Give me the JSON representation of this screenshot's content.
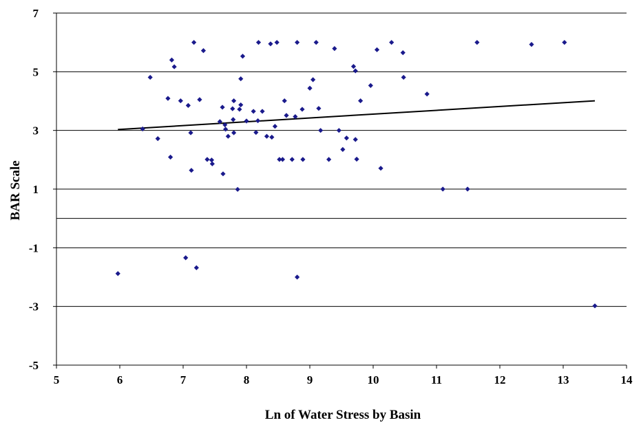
{
  "chart_data": {
    "type": "scatter",
    "title": "",
    "xlabel": "Ln of Water Stress by Basin",
    "ylabel": "BAR Scale",
    "xlim": [
      5,
      14
    ],
    "ylim": [
      -5,
      7
    ],
    "x_ticks": [
      5,
      6,
      7,
      8,
      9,
      10,
      11,
      12,
      13,
      14
    ],
    "y_ticks": [
      -5,
      -3,
      -1,
      1,
      3,
      5,
      7
    ],
    "y_gridlines": [
      -3,
      -1,
      0,
      1,
      3,
      5,
      7
    ],
    "grid": "horizontal",
    "legend": "none",
    "marker_color": "#1a1a8c",
    "trendline_color": "#000000",
    "trendline": {
      "x": [
        5.97,
        13.5
      ],
      "y": [
        3.03,
        4.01
      ]
    },
    "series": [
      {
        "points": [
          [
            5.97,
            -1.88
          ],
          [
            6.36,
            3.05
          ],
          [
            6.48,
            4.81
          ],
          [
            6.6,
            2.72
          ],
          [
            6.76,
            4.09
          ],
          [
            6.8,
            2.09
          ],
          [
            6.82,
            5.4
          ],
          [
            6.86,
            5.17
          ],
          [
            6.96,
            4.01
          ],
          [
            7.04,
            -1.34
          ],
          [
            7.08,
            3.85
          ],
          [
            7.12,
            2.92
          ],
          [
            7.13,
            1.64
          ],
          [
            7.17,
            6.0
          ],
          [
            7.21,
            -1.68
          ],
          [
            7.26,
            4.05
          ],
          [
            7.32,
            5.72
          ],
          [
            7.38,
            2.01
          ],
          [
            7.45,
            1.99
          ],
          [
            7.46,
            1.86
          ],
          [
            7.58,
            3.3
          ],
          [
            7.62,
            3.79
          ],
          [
            7.63,
            1.52
          ],
          [
            7.66,
            3.19
          ],
          [
            7.67,
            3.04
          ],
          [
            7.71,
            2.8
          ],
          [
            7.78,
            3.74
          ],
          [
            7.79,
            3.37
          ],
          [
            7.8,
            2.92
          ],
          [
            7.8,
            4.01
          ],
          [
            7.86,
            0.99
          ],
          [
            7.89,
            3.72
          ],
          [
            7.91,
            3.87
          ],
          [
            7.91,
            4.76
          ],
          [
            7.94,
            5.53
          ],
          [
            8.0,
            3.32
          ],
          [
            8.11,
            3.65
          ],
          [
            8.15,
            2.93
          ],
          [
            8.18,
            3.33
          ],
          [
            8.19,
            6.0
          ],
          [
            8.25,
            3.65
          ],
          [
            8.32,
            2.8
          ],
          [
            8.38,
            5.95
          ],
          [
            8.4,
            2.77
          ],
          [
            8.45,
            3.14
          ],
          [
            8.48,
            6.0
          ],
          [
            8.52,
            2.01
          ],
          [
            8.57,
            2.01
          ],
          [
            8.6,
            4.01
          ],
          [
            8.63,
            3.51
          ],
          [
            8.72,
            2.01
          ],
          [
            8.77,
            3.47
          ],
          [
            8.8,
            6.0
          ],
          [
            8.8,
            -2.0
          ],
          [
            8.88,
            3.72
          ],
          [
            8.89,
            2.01
          ],
          [
            9.0,
            4.44
          ],
          [
            9.05,
            4.73
          ],
          [
            9.1,
            6.0
          ],
          [
            9.14,
            3.75
          ],
          [
            9.17,
            3.0
          ],
          [
            9.3,
            2.01
          ],
          [
            9.39,
            5.79
          ],
          [
            9.46,
            3.0
          ],
          [
            9.52,
            2.35
          ],
          [
            9.58,
            2.74
          ],
          [
            9.69,
            5.18
          ],
          [
            9.72,
            5.03
          ],
          [
            9.72,
            2.69
          ],
          [
            9.74,
            2.02
          ],
          [
            9.8,
            4.01
          ],
          [
            9.96,
            4.53
          ],
          [
            10.06,
            5.75
          ],
          [
            10.12,
            1.71
          ],
          [
            10.29,
            6.0
          ],
          [
            10.47,
            5.65
          ],
          [
            10.48,
            4.81
          ],
          [
            10.85,
            4.24
          ],
          [
            11.1,
            1.0
          ],
          [
            11.49,
            1.0
          ],
          [
            11.64,
            6.0
          ],
          [
            12.5,
            5.93
          ],
          [
            13.02,
            6.0
          ],
          [
            13.5,
            -2.98
          ]
        ]
      }
    ]
  }
}
